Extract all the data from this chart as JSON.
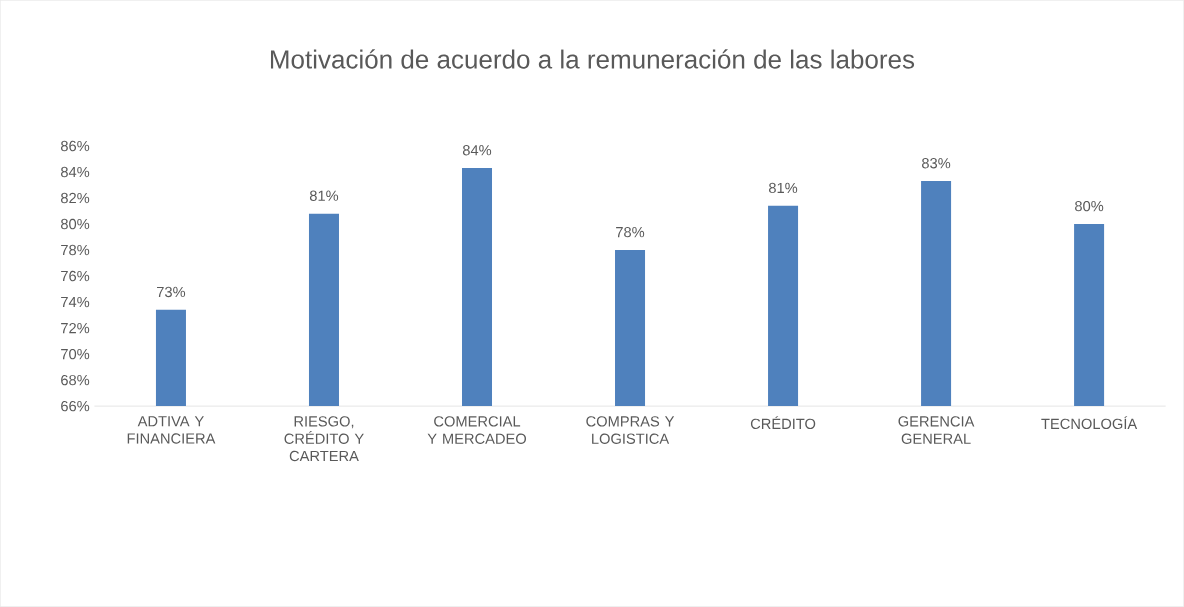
{
  "chart_data": {
    "type": "bar",
    "title": "Motivación de acuerdo a la remuneración de las labores",
    "categories": [
      "ADTIVA Y FINANCIERA",
      "RIESGO, CRÉDITO Y CARTERA",
      "COMERCIAL Y MERCADEO",
      "COMPRAS Y LOGISTICA",
      "CRÉDITO",
      "GERENCIA GENERAL",
      "TECNOLOGÍA"
    ],
    "values": [
      73.4,
      80.8,
      84.3,
      78.0,
      81.4,
      83.3,
      80.0
    ],
    "value_labels": [
      "73%",
      "81%",
      "84%",
      "78%",
      "81%",
      "83%",
      "80%"
    ],
    "color": "#4f81bd",
    "ylim": [
      66,
      86
    ],
    "yticks": [
      {
        "value": 66,
        "label": "66%"
      },
      {
        "value": 68,
        "label": "68%"
      },
      {
        "value": 70,
        "label": "70%"
      },
      {
        "value": 72,
        "label": "72%"
      },
      {
        "value": 74,
        "label": "74%"
      },
      {
        "value": 76,
        "label": "76%"
      },
      {
        "value": 78,
        "label": "78%"
      },
      {
        "value": 80,
        "label": "80%"
      },
      {
        "value": 82,
        "label": "82%"
      },
      {
        "value": 84,
        "label": "84%"
      },
      {
        "value": 86,
        "label": "86%"
      }
    ],
    "tick_labels": true
  }
}
